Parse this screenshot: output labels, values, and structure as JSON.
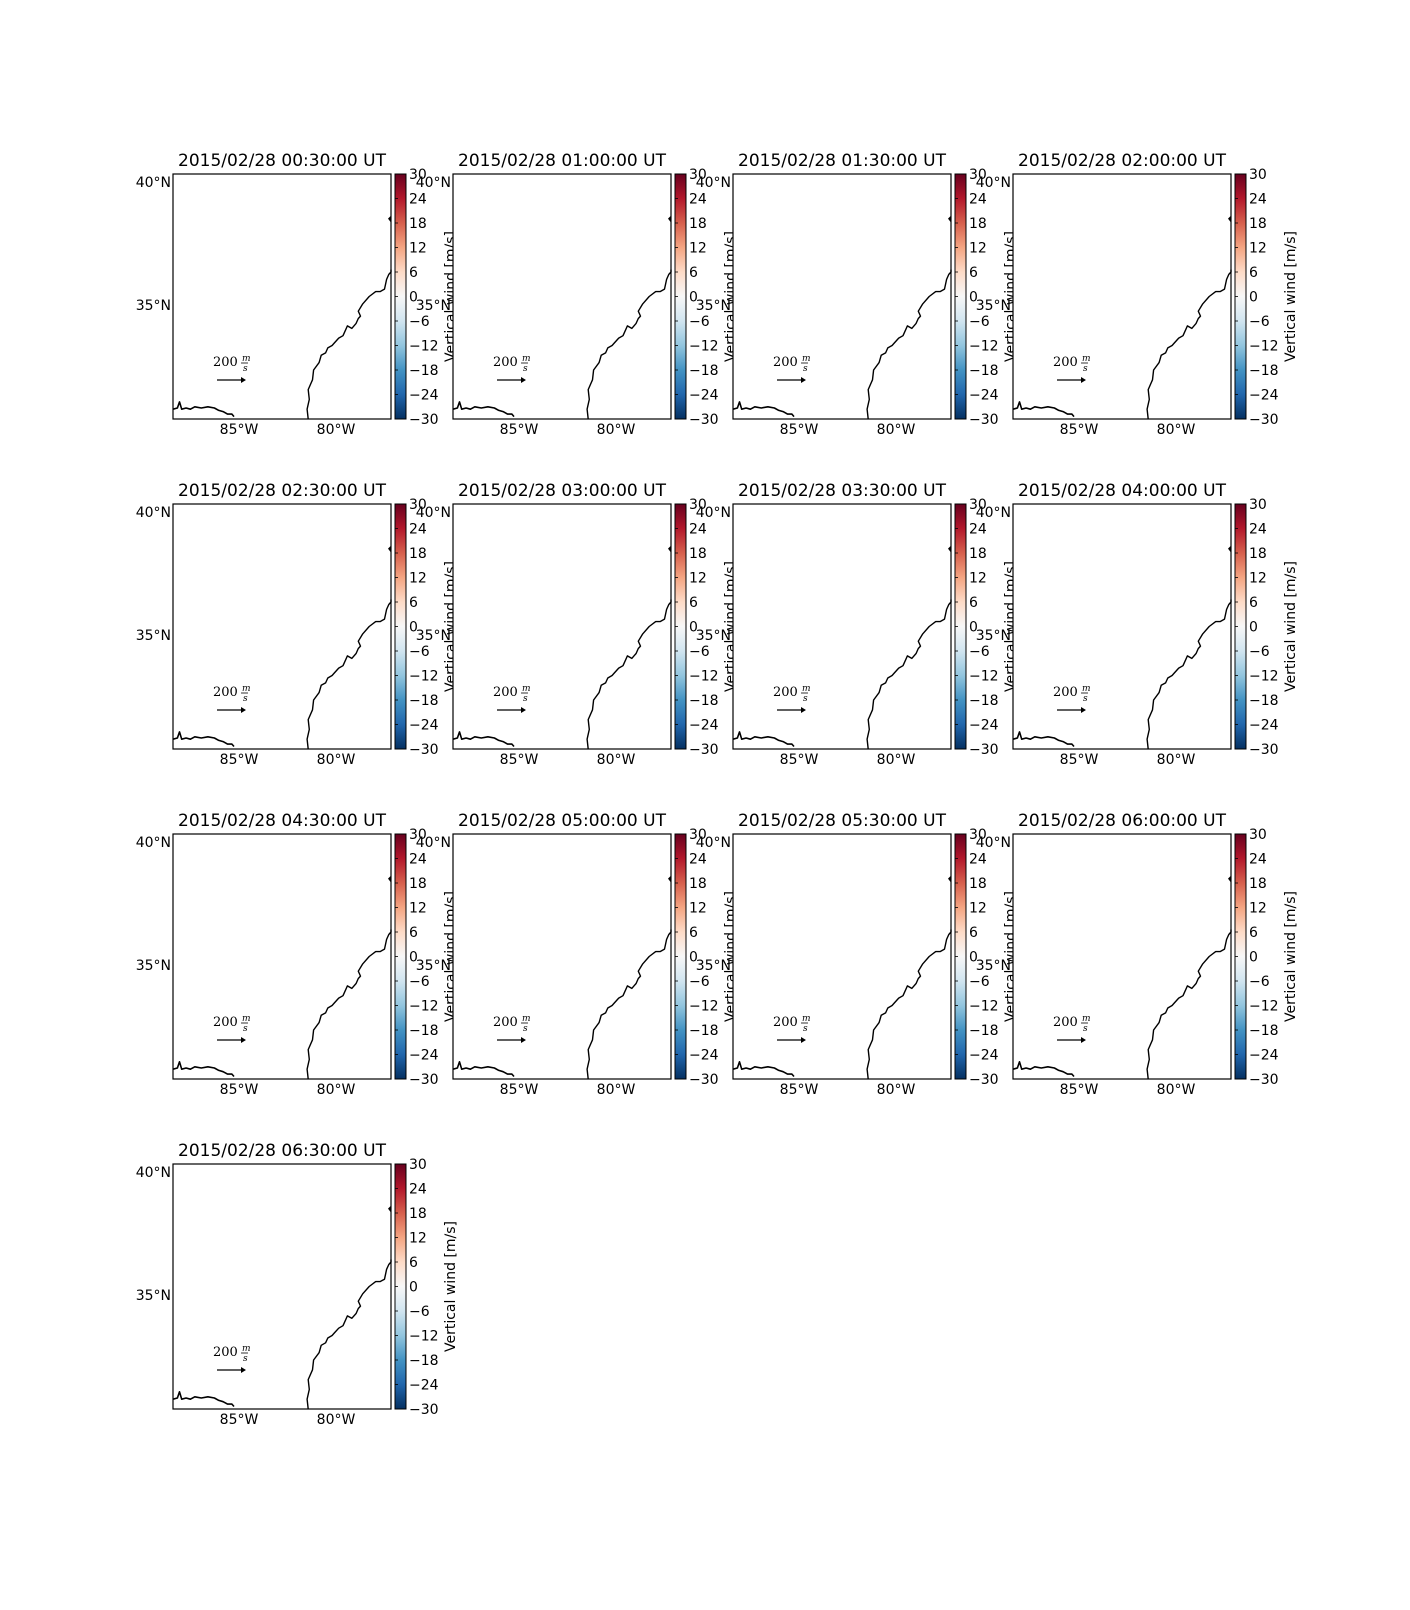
{
  "chart_data": {
    "type": "map",
    "region": "US Southeast / Atlantic coast",
    "panels": [
      {
        "title": "2015/02/28 00:30:00 UT"
      },
      {
        "title": "2015/02/28 01:00:00 UT"
      },
      {
        "title": "2015/02/28 01:30:00 UT"
      },
      {
        "title": "2015/02/28 02:00:00 UT"
      },
      {
        "title": "2015/02/28 02:30:00 UT"
      },
      {
        "title": "2015/02/28 03:00:00 UT"
      },
      {
        "title": "2015/02/28 03:30:00 UT"
      },
      {
        "title": "2015/02/28 04:00:00 UT"
      },
      {
        "title": "2015/02/28 04:30:00 UT"
      },
      {
        "title": "2015/02/28 05:00:00 UT"
      },
      {
        "title": "2015/02/28 05:30:00 UT"
      },
      {
        "title": "2015/02/28 06:00:00 UT"
      },
      {
        "title": "2015/02/28 06:30:00 UT"
      }
    ],
    "lat_ticks": [
      "40°N",
      "35°N"
    ],
    "lon_ticks": [
      "85°W",
      "80°W"
    ],
    "quiver_key": {
      "value": 200,
      "units": "m/s",
      "label_number": "200",
      "label_num": "m",
      "label_den": "s"
    },
    "colorbar": {
      "label": "Vertical wind [m/s]",
      "colormap": "RdBu_r",
      "range": [
        -30,
        30
      ],
      "ticks": [
        30,
        24,
        18,
        12,
        6,
        0,
        -6,
        -12,
        -18,
        -24,
        -30
      ],
      "tick_labels": [
        "30",
        "24",
        "18",
        "12",
        "6",
        "0",
        "−6",
        "−12",
        "−18",
        "−24",
        "−30"
      ],
      "colors": [
        "#67001f",
        "#b2182b",
        "#d6604d",
        "#f4a582",
        "#fddbc7",
        "#f7f7f7",
        "#d1e5f0",
        "#92c5de",
        "#4393c3",
        "#2166ac",
        "#053061"
      ]
    }
  }
}
